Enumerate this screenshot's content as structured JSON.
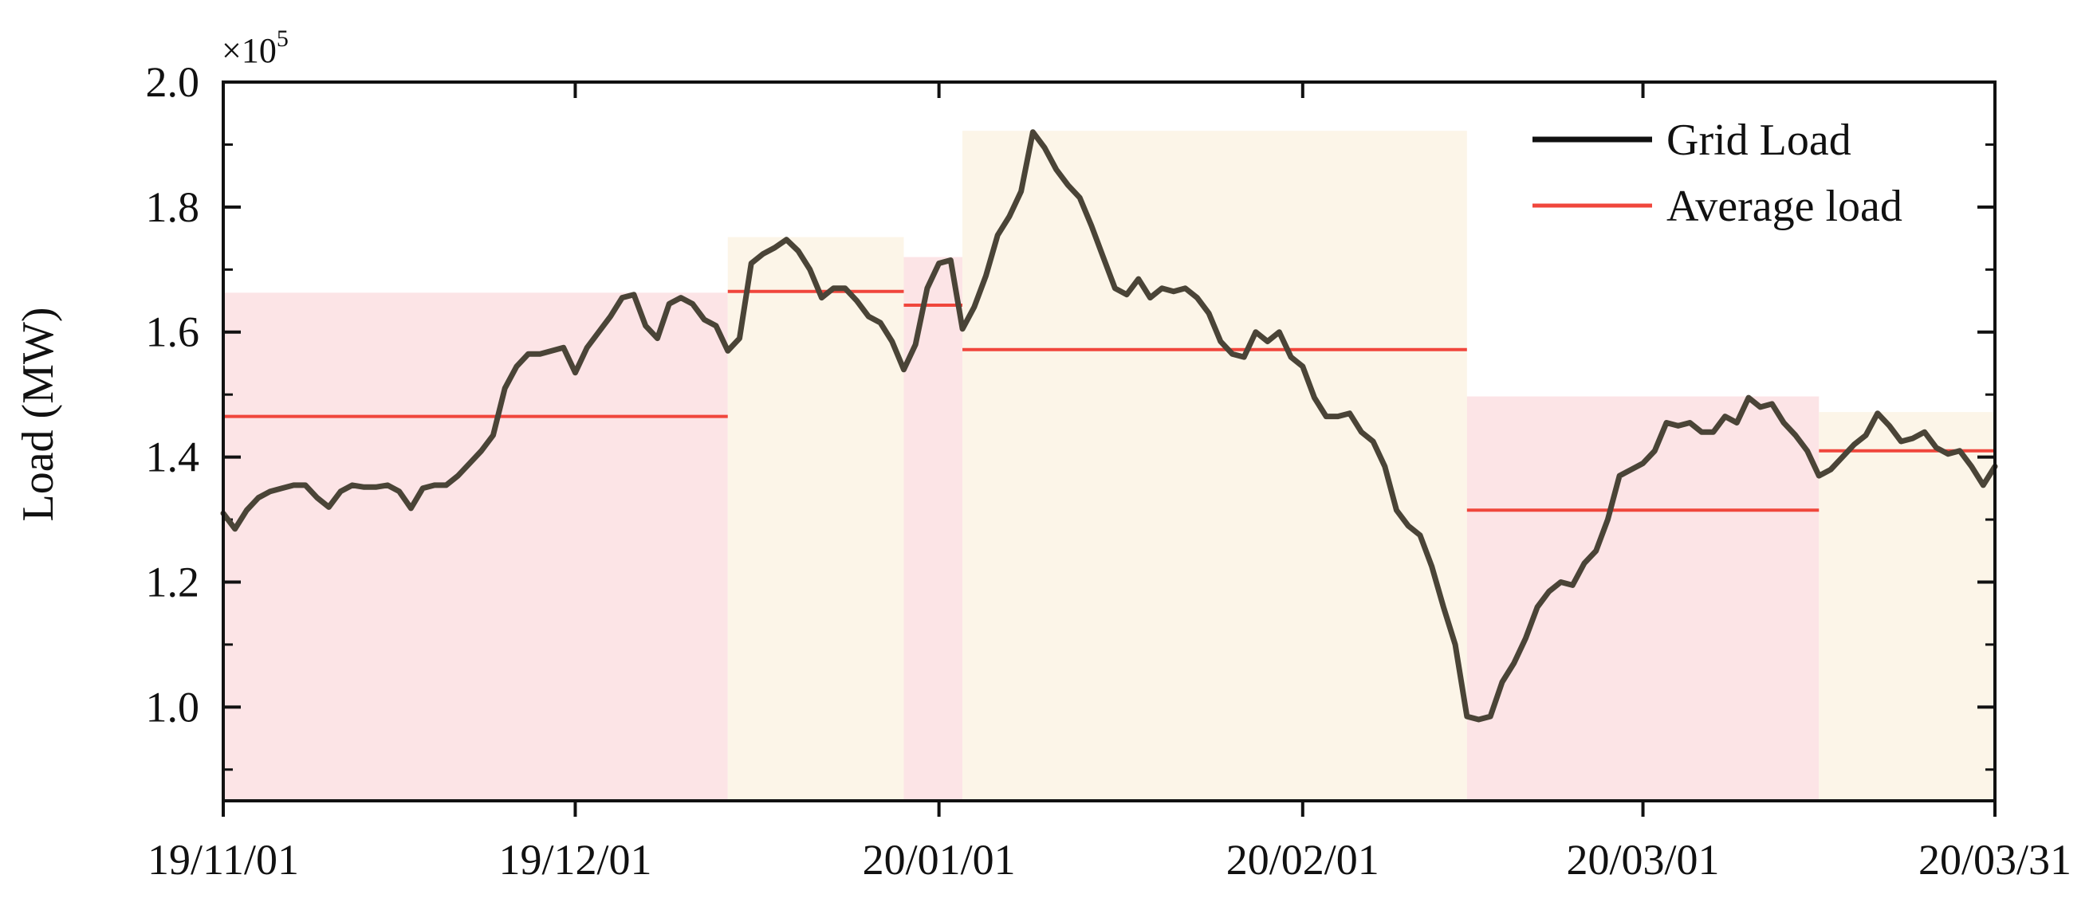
{
  "chart_data": {
    "type": "line",
    "ylabel": "Load (MW)",
    "y_multiplier": {
      "base": "×10",
      "exponent": "5"
    },
    "ylim": [
      0.85,
      2.0
    ],
    "y_ticks": [
      {
        "value": 1.0,
        "label": "1.0"
      },
      {
        "value": 1.2,
        "label": "1.2"
      },
      {
        "value": 1.4,
        "label": "1.4"
      },
      {
        "value": 1.6,
        "label": "1.6"
      },
      {
        "value": 1.8,
        "label": "1.8"
      },
      {
        "value": 2.0,
        "label": "2.0"
      }
    ],
    "x_start": "2019-11-01",
    "x_end": "2020-03-31",
    "x_ticks": [
      {
        "date": "2019-11-01",
        "label": "19/11/01"
      },
      {
        "date": "2019-12-01",
        "label": "19/12/01"
      },
      {
        "date": "2020-01-01",
        "label": "20/01/01"
      },
      {
        "date": "2020-02-01",
        "label": "20/02/01"
      },
      {
        "date": "2020-03-01",
        "label": "20/03/01"
      },
      {
        "date": "2020-03-31",
        "label": "20/03/31"
      }
    ],
    "legend": {
      "position": "top-right",
      "entries": [
        {
          "label": "Grid Load",
          "color": "#111111"
        },
        {
          "label": "Average load",
          "color": "#f0463c"
        }
      ]
    },
    "series": [
      {
        "name": "Grid Load",
        "color": "#4a4437",
        "points": [
          [
            "2019-11-01",
            1.31
          ],
          [
            "2019-11-02",
            1.285
          ],
          [
            "2019-11-03",
            1.315
          ],
          [
            "2019-11-04",
            1.335
          ],
          [
            "2019-11-05",
            1.345
          ],
          [
            "2019-11-06",
            1.35
          ],
          [
            "2019-11-07",
            1.355
          ],
          [
            "2019-11-08",
            1.355
          ],
          [
            "2019-11-09",
            1.335
          ],
          [
            "2019-11-10",
            1.32
          ],
          [
            "2019-11-11",
            1.345
          ],
          [
            "2019-11-12",
            1.355
          ],
          [
            "2019-11-13",
            1.352
          ],
          [
            "2019-11-14",
            1.352
          ],
          [
            "2019-11-15",
            1.355
          ],
          [
            "2019-11-16",
            1.345
          ],
          [
            "2019-11-17",
            1.318
          ],
          [
            "2019-11-18",
            1.35
          ],
          [
            "2019-11-19",
            1.355
          ],
          [
            "2019-11-20",
            1.355
          ],
          [
            "2019-11-21",
            1.37
          ],
          [
            "2019-11-22",
            1.39
          ],
          [
            "2019-11-23",
            1.41
          ],
          [
            "2019-11-24",
            1.435
          ],
          [
            "2019-11-25",
            1.51
          ],
          [
            "2019-11-26",
            1.545
          ],
          [
            "2019-11-27",
            1.565
          ],
          [
            "2019-11-28",
            1.565
          ],
          [
            "2019-11-29",
            1.57
          ],
          [
            "2019-11-30",
            1.575
          ],
          [
            "2019-12-01",
            1.535
          ],
          [
            "2019-12-02",
            1.575
          ],
          [
            "2019-12-03",
            1.6
          ],
          [
            "2019-12-04",
            1.625
          ],
          [
            "2019-12-05",
            1.655
          ],
          [
            "2019-12-06",
            1.66
          ],
          [
            "2019-12-07",
            1.61
          ],
          [
            "2019-12-08",
            1.59
          ],
          [
            "2019-12-09",
            1.645
          ],
          [
            "2019-12-10",
            1.655
          ],
          [
            "2019-12-11",
            1.645
          ],
          [
            "2019-12-12",
            1.62
          ],
          [
            "2019-12-13",
            1.61
          ],
          [
            "2019-12-14",
            1.57
          ],
          [
            "2019-12-15",
            1.59
          ],
          [
            "2019-12-16",
            1.71
          ],
          [
            "2019-12-17",
            1.725
          ],
          [
            "2019-12-18",
            1.735
          ],
          [
            "2019-12-19",
            1.748
          ],
          [
            "2019-12-20",
            1.73
          ],
          [
            "2019-12-21",
            1.7
          ],
          [
            "2019-12-22",
            1.655
          ],
          [
            "2019-12-23",
            1.67
          ],
          [
            "2019-12-24",
            1.67
          ],
          [
            "2019-12-25",
            1.65
          ],
          [
            "2019-12-26",
            1.625
          ],
          [
            "2019-12-27",
            1.615
          ],
          [
            "2019-12-28",
            1.585
          ],
          [
            "2019-12-29",
            1.54
          ],
          [
            "2019-12-30",
            1.58
          ],
          [
            "2019-12-31",
            1.67
          ],
          [
            "2020-01-01",
            1.71
          ],
          [
            "2020-01-02",
            1.715
          ],
          [
            "2020-01-03",
            1.605
          ],
          [
            "2020-01-04",
            1.64
          ],
          [
            "2020-01-05",
            1.69
          ],
          [
            "2020-01-06",
            1.755
          ],
          [
            "2020-01-07",
            1.785
          ],
          [
            "2020-01-08",
            1.825
          ],
          [
            "2020-01-09",
            1.92
          ],
          [
            "2020-01-10",
            1.895
          ],
          [
            "2020-01-11",
            1.86
          ],
          [
            "2020-01-12",
            1.835
          ],
          [
            "2020-01-13",
            1.815
          ],
          [
            "2020-01-14",
            1.77
          ],
          [
            "2020-01-15",
            1.72
          ],
          [
            "2020-01-16",
            1.67
          ],
          [
            "2020-01-17",
            1.66
          ],
          [
            "2020-01-18",
            1.685
          ],
          [
            "2020-01-19",
            1.655
          ],
          [
            "2020-01-20",
            1.67
          ],
          [
            "2020-01-21",
            1.665
          ],
          [
            "2020-01-22",
            1.67
          ],
          [
            "2020-01-23",
            1.655
          ],
          [
            "2020-01-24",
            1.63
          ],
          [
            "2020-01-25",
            1.585
          ],
          [
            "2020-01-26",
            1.565
          ],
          [
            "2020-01-27",
            1.56
          ],
          [
            "2020-01-28",
            1.6
          ],
          [
            "2020-01-29",
            1.585
          ],
          [
            "2020-01-30",
            1.6
          ],
          [
            "2020-01-31",
            1.56
          ],
          [
            "2020-02-01",
            1.545
          ],
          [
            "2020-02-02",
            1.495
          ],
          [
            "2020-02-03",
            1.465
          ],
          [
            "2020-02-04",
            1.465
          ],
          [
            "2020-02-05",
            1.47
          ],
          [
            "2020-02-06",
            1.44
          ],
          [
            "2020-02-07",
            1.425
          ],
          [
            "2020-02-08",
            1.385
          ],
          [
            "2020-02-09",
            1.315
          ],
          [
            "2020-02-10",
            1.29
          ],
          [
            "2020-02-11",
            1.275
          ],
          [
            "2020-02-12",
            1.225
          ],
          [
            "2020-02-13",
            1.16
          ],
          [
            "2020-02-14",
            1.1
          ],
          [
            "2020-02-15",
            0.985
          ],
          [
            "2020-02-16",
            0.98
          ],
          [
            "2020-02-17",
            0.985
          ],
          [
            "2020-02-18",
            1.04
          ],
          [
            "2020-02-19",
            1.07
          ],
          [
            "2020-02-20",
            1.11
          ],
          [
            "2020-02-21",
            1.16
          ],
          [
            "2020-02-22",
            1.185
          ],
          [
            "2020-02-23",
            1.2
          ],
          [
            "2020-02-24",
            1.195
          ],
          [
            "2020-02-25",
            1.23
          ],
          [
            "2020-02-26",
            1.25
          ],
          [
            "2020-02-27",
            1.3
          ],
          [
            "2020-02-28",
            1.37
          ],
          [
            "2020-02-29",
            1.38
          ],
          [
            "2020-03-01",
            1.39
          ],
          [
            "2020-03-02",
            1.41
          ],
          [
            "2020-03-03",
            1.455
          ],
          [
            "2020-03-04",
            1.45
          ],
          [
            "2020-03-05",
            1.455
          ],
          [
            "2020-03-06",
            1.44
          ],
          [
            "2020-03-07",
            1.44
          ],
          [
            "2020-03-08",
            1.465
          ],
          [
            "2020-03-09",
            1.455
          ],
          [
            "2020-03-10",
            1.495
          ],
          [
            "2020-03-11",
            1.48
          ],
          [
            "2020-03-12",
            1.485
          ],
          [
            "2020-03-13",
            1.455
          ],
          [
            "2020-03-14",
            1.435
          ],
          [
            "2020-03-15",
            1.41
          ],
          [
            "2020-03-16",
            1.37
          ],
          [
            "2020-03-17",
            1.38
          ],
          [
            "2020-03-18",
            1.4
          ],
          [
            "2020-03-19",
            1.42
          ],
          [
            "2020-03-20",
            1.435
          ],
          [
            "2020-03-21",
            1.47
          ],
          [
            "2020-03-22",
            1.45
          ],
          [
            "2020-03-23",
            1.425
          ],
          [
            "2020-03-24",
            1.43
          ],
          [
            "2020-03-25",
            1.44
          ],
          [
            "2020-03-26",
            1.415
          ],
          [
            "2020-03-27",
            1.405
          ],
          [
            "2020-03-28",
            1.41
          ],
          [
            "2020-03-29",
            1.385
          ],
          [
            "2020-03-30",
            1.355
          ],
          [
            "2020-03-31",
            1.385
          ]
        ]
      },
      {
        "name": "Average load",
        "color": "#f0463c",
        "segments": [
          {
            "start": "2019-11-01",
            "end": "2019-12-14",
            "value": 1.465
          },
          {
            "start": "2019-12-14",
            "end": "2019-12-29",
            "value": 1.665
          },
          {
            "start": "2019-12-29",
            "end": "2020-01-03",
            "value": 1.643
          },
          {
            "start": "2020-01-03",
            "end": "2020-02-15",
            "value": 1.572
          },
          {
            "start": "2020-02-15",
            "end": "2020-03-16",
            "value": 1.315
          },
          {
            "start": "2020-03-16",
            "end": "2020-03-31",
            "value": 1.41
          }
        ]
      }
    ],
    "shaded_periods": [
      {
        "start": "2019-11-01",
        "end": "2019-12-14",
        "top": 1.663,
        "color": "#fce4e6"
      },
      {
        "start": "2019-12-14",
        "end": "2019-12-29",
        "top": 1.752,
        "color": "#fcf5e8"
      },
      {
        "start": "2019-12-29",
        "end": "2020-01-03",
        "top": 1.72,
        "color": "#fce4e6"
      },
      {
        "start": "2020-01-03",
        "end": "2020-02-15",
        "top": 1.922,
        "color": "#fcf5e8"
      },
      {
        "start": "2020-02-15",
        "end": "2020-03-16",
        "top": 1.497,
        "color": "#fce4e6"
      },
      {
        "start": "2020-03-16",
        "end": "2020-03-31",
        "top": 1.472,
        "color": "#fcf5e8"
      }
    ]
  }
}
